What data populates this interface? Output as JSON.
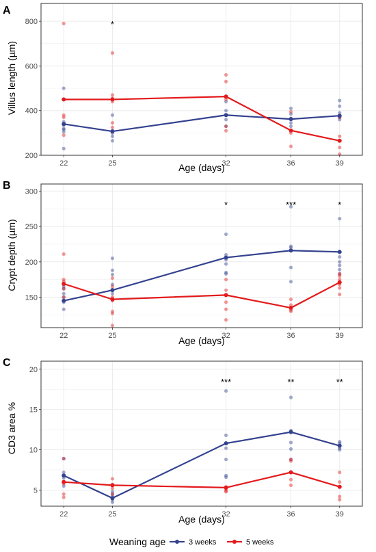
{
  "legend": {
    "title": "Weaning age",
    "position": "bottom"
  },
  "series_styles": [
    {
      "name": "3 weeks",
      "color": "#34428f"
    },
    {
      "name": "5 weeks",
      "color": "#e31a1c"
    }
  ],
  "chart_data": [
    {
      "panel": "A",
      "type": "line",
      "xlabel": "Age (days)",
      "ylabel": "Villus length (µm)",
      "x": [
        22,
        25,
        32,
        36,
        39
      ],
      "ylim": [
        200,
        880
      ],
      "yticks": [
        200,
        400,
        600,
        800
      ],
      "grid": true,
      "significance": [
        {
          "x": 25,
          "label": "*"
        }
      ],
      "series": [
        {
          "name": "3 weeks",
          "values": [
            340,
            307,
            380,
            362,
            377
          ],
          "points": [
            [
              22,
              500
            ],
            [
              22,
              350
            ],
            [
              22,
              335
            ],
            [
              22,
              320
            ],
            [
              22,
              315
            ],
            [
              22,
              305
            ],
            [
              22,
              230
            ],
            [
              25,
              380
            ],
            [
              25,
              310
            ],
            [
              25,
              300
            ],
            [
              25,
              285
            ],
            [
              25,
              265
            ],
            [
              32,
              460
            ],
            [
              32,
              440
            ],
            [
              32,
              400
            ],
            [
              32,
              360
            ],
            [
              32,
              330
            ],
            [
              36,
              410
            ],
            [
              36,
              385
            ],
            [
              36,
              365
            ],
            [
              36,
              345
            ],
            [
              36,
              330
            ],
            [
              39,
              445
            ],
            [
              39,
              420
            ],
            [
              39,
              390
            ],
            [
              39,
              370
            ],
            [
              39,
              360
            ]
          ]
        },
        {
          "name": "5 weeks",
          "values": [
            450,
            450,
            463,
            311,
            265
          ],
          "points": [
            [
              22,
              790
            ],
            [
              22,
              380
            ],
            [
              22,
              370
            ],
            [
              22,
              340
            ],
            [
              22,
              290
            ],
            [
              25,
              658
            ],
            [
              25,
              470
            ],
            [
              25,
              455
            ],
            [
              25,
              440
            ],
            [
              25,
              345
            ],
            [
              25,
              325
            ],
            [
              32,
              560
            ],
            [
              32,
              530
            ],
            [
              32,
              450
            ],
            [
              32,
              330
            ],
            [
              32,
              310
            ],
            [
              36,
              395
            ],
            [
              36,
              310
            ],
            [
              36,
              300
            ],
            [
              36,
              240
            ],
            [
              39,
              370
            ],
            [
              39,
              285
            ],
            [
              39,
              265
            ],
            [
              39,
              235
            ],
            [
              39,
              205
            ]
          ]
        }
      ]
    },
    {
      "panel": "B",
      "type": "line",
      "xlabel": "Age (days)",
      "ylabel": "Crypt depth (µm)",
      "x": [
        22,
        25,
        32,
        36,
        39
      ],
      "ylim": [
        107,
        310
      ],
      "yticks": [
        150,
        200,
        250,
        300
      ],
      "grid": true,
      "significance": [
        {
          "x": 32,
          "label": "*"
        },
        {
          "x": 36,
          "label": "***"
        },
        {
          "x": 39,
          "label": "*"
        }
      ],
      "series": [
        {
          "name": "3 weeks",
          "values": [
            145,
            160,
            206,
            216,
            214
          ],
          "points": [
            [
              22,
              165
            ],
            [
              22,
              162
            ],
            [
              22,
              155
            ],
            [
              22,
              150
            ],
            [
              22,
              143
            ],
            [
              22,
              133
            ],
            [
              25,
              205
            ],
            [
              25,
              188
            ],
            [
              25,
              182
            ],
            [
              25,
              168
            ],
            [
              25,
              160
            ],
            [
              25,
              155
            ],
            [
              32,
              239
            ],
            [
              32,
              210
            ],
            [
              32,
              203
            ],
            [
              32,
              197
            ],
            [
              32,
              185
            ],
            [
              32,
              183
            ],
            [
              36,
              278
            ],
            [
              36,
              222
            ],
            [
              36,
              220
            ],
            [
              36,
              192
            ],
            [
              36,
              172
            ],
            [
              39,
              261
            ],
            [
              39,
              207
            ],
            [
              39,
              200
            ],
            [
              39,
              195
            ],
            [
              39,
              189
            ],
            [
              39,
              183
            ]
          ]
        },
        {
          "name": "5 weeks",
          "values": [
            169,
            147,
            153,
            135,
            171
          ],
          "points": [
            [
              22,
              211
            ],
            [
              22,
              175
            ],
            [
              22,
              172
            ],
            [
              22,
              168
            ],
            [
              22,
              162
            ],
            [
              22,
              150
            ],
            [
              25,
              177
            ],
            [
              25,
              165
            ],
            [
              25,
              150
            ],
            [
              25,
              145
            ],
            [
              25,
              130
            ],
            [
              25,
              127
            ],
            [
              25,
              110
            ],
            [
              32,
              175
            ],
            [
              32,
              160
            ],
            [
              32,
              153
            ],
            [
              32,
              143
            ],
            [
              32,
              133
            ],
            [
              32,
              118
            ],
            [
              36,
              147
            ],
            [
              36,
              139
            ],
            [
              36,
              135
            ],
            [
              36,
              132
            ],
            [
              36,
              130
            ],
            [
              39,
              183
            ],
            [
              39,
              180
            ],
            [
              39,
              175
            ],
            [
              39,
              168
            ],
            [
              39,
              163
            ],
            [
              39,
              154
            ]
          ]
        }
      ]
    },
    {
      "panel": "C",
      "type": "line",
      "xlabel": "Age (days)",
      "ylabel": "CD3 area %",
      "x": [
        22,
        25,
        32,
        36,
        39
      ],
      "ylim": [
        3.0,
        21.0
      ],
      "yticks": [
        5,
        10,
        15,
        20
      ],
      "grid": true,
      "significance": [
        {
          "x": 32,
          "label": "***"
        },
        {
          "x": 36,
          "label": "**"
        },
        {
          "x": 39,
          "label": "**"
        }
      ],
      "series": [
        {
          "name": "3 weeks",
          "values": [
            6.8,
            4.0,
            10.8,
            12.2,
            10.5
          ],
          "points": [
            [
              22,
              8.9
            ],
            [
              22,
              7.2
            ],
            [
              22,
              6.8
            ],
            [
              22,
              6.5
            ],
            [
              22,
              6.0
            ],
            [
              22,
              5.5
            ],
            [
              25,
              4.8
            ],
            [
              25,
              4.5
            ],
            [
              25,
              4.2
            ],
            [
              25,
              4.0
            ],
            [
              25,
              3.8
            ],
            [
              25,
              3.5
            ],
            [
              32,
              17.3
            ],
            [
              32,
              11.8
            ],
            [
              32,
              10.2
            ],
            [
              32,
              8.8
            ],
            [
              32,
              6.8
            ],
            [
              32,
              6.6
            ],
            [
              36,
              16.5
            ],
            [
              36,
              12.4
            ],
            [
              36,
              12.2
            ],
            [
              36,
              10.9
            ],
            [
              36,
              10.1
            ],
            [
              36,
              8.8
            ],
            [
              39,
              11.0
            ],
            [
              39,
              10.8
            ],
            [
              39,
              10.5
            ],
            [
              39,
              10.2
            ],
            [
              39,
              10.0
            ]
          ]
        },
        {
          "name": "5 weeks",
          "values": [
            6.0,
            5.6,
            5.3,
            7.2,
            5.4
          ],
          "points": [
            [
              22,
              8.9
            ],
            [
              22,
              6.0
            ],
            [
              22,
              5.8
            ],
            [
              22,
              4.5
            ],
            [
              22,
              4.1
            ],
            [
              25,
              6.4
            ],
            [
              25,
              5.7
            ],
            [
              25,
              5.6
            ],
            [
              25,
              5.2
            ],
            [
              25,
              4.5
            ],
            [
              32,
              5.4
            ],
            [
              32,
              5.3
            ],
            [
              32,
              5.1
            ],
            [
              32,
              4.9
            ],
            [
              32,
              4.8
            ],
            [
              36,
              8.8
            ],
            [
              36,
              8.6
            ],
            [
              36,
              7.2
            ],
            [
              36,
              6.3
            ],
            [
              36,
              5.6
            ],
            [
              39,
              7.2
            ],
            [
              39,
              6.0
            ],
            [
              39,
              5.4
            ],
            [
              39,
              4.2
            ],
            [
              39,
              3.8
            ]
          ]
        }
      ]
    }
  ]
}
